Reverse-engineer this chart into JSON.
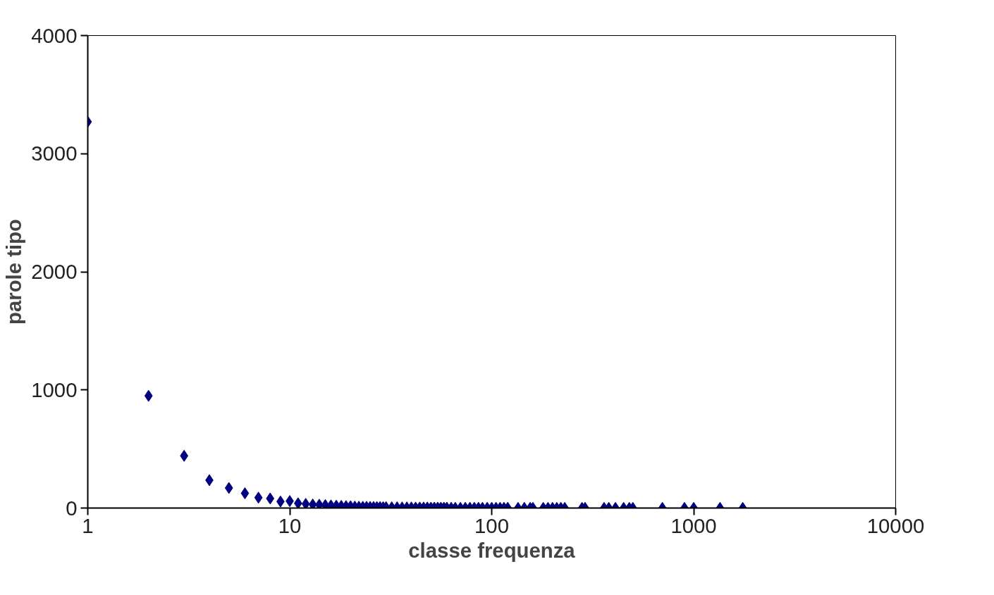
{
  "chart_data": {
    "type": "scatter",
    "xlabel": "classe frequenza",
    "ylabel": "parole tipo",
    "log": "x",
    "marker": "diamond",
    "grid": false,
    "xlim": [
      1,
      10000
    ],
    "xticks": [
      1,
      10,
      100,
      1000,
      10000
    ],
    "ylim": [
      0,
      4000
    ],
    "yticks": [
      0,
      1000,
      2000,
      3000,
      4000
    ],
    "series": [
      {
        "color": "#000080",
        "x": [
          1,
          2,
          3,
          4,
          5,
          6,
          7,
          8,
          9,
          10,
          11,
          12,
          13,
          14,
          15,
          16,
          17,
          18,
          19,
          20,
          21,
          22,
          23,
          24,
          25,
          26,
          27,
          28,
          29,
          30,
          32,
          34,
          36,
          38,
          40,
          42,
          44,
          46,
          48,
          50,
          52,
          54,
          56,
          58,
          60,
          63,
          66,
          70,
          74,
          78,
          82,
          86,
          90,
          95,
          100,
          105,
          110,
          115,
          120,
          135,
          145,
          155,
          160,
          180,
          190,
          200,
          210,
          220,
          230,
          280,
          290,
          360,
          380,
          410,
          450,
          480,
          500,
          700,
          900,
          1000,
          1350,
          1750
        ],
        "values": [
          3270,
          950,
          442,
          236,
          170,
          125,
          88,
          81,
          55,
          59,
          40,
          35,
          30,
          28,
          25,
          22,
          20,
          18,
          16,
          15,
          12,
          11,
          10,
          10,
          9,
          9,
          8,
          8,
          7,
          7,
          6,
          6,
          5,
          5,
          5,
          4,
          4,
          4,
          4,
          3,
          3,
          3,
          3,
          3,
          3,
          2,
          2,
          2,
          2,
          2,
          2,
          2,
          2,
          2,
          2,
          2,
          2,
          2,
          2,
          1,
          1,
          1,
          1,
          1,
          1,
          1,
          1,
          1,
          1,
          1,
          1,
          1,
          1,
          1,
          1,
          1,
          1,
          1,
          1,
          1,
          1,
          1
        ]
      }
    ]
  }
}
